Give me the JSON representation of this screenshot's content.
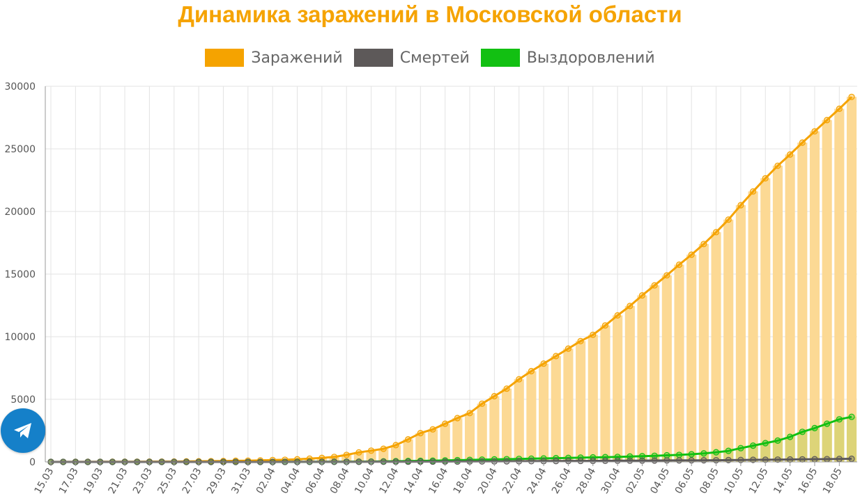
{
  "title": "Динамика заражений в Московской области",
  "colors": {
    "title": "#f5a300",
    "infected": "#f5a300",
    "infected_bar": "#fcd994",
    "deaths": "#5d5959",
    "recovered": "#12c012",
    "recovered_bar": "#d9d374",
    "grid": "#e3e3e3",
    "axis": "#999999",
    "telegram": "#1580c9"
  },
  "legend": [
    {
      "label": "Заражений",
      "color": "#f5a300"
    },
    {
      "label": "Смертей",
      "color": "#5d5959"
    },
    {
      "label": "Выздоровлений",
      "color": "#12c012"
    }
  ],
  "telegram": {
    "icon": "telegram-plane-icon"
  },
  "chart_data": {
    "type": "bar",
    "title": "Динамика заражений в Московской области",
    "xlabel": "",
    "ylabel": "",
    "ylim": [
      0,
      30000
    ],
    "yticks": [
      0,
      5000,
      10000,
      15000,
      20000,
      25000,
      30000
    ],
    "grid": true,
    "legend_position": "top",
    "categories": [
      "15.03",
      "16.03",
      "17.03",
      "18.03",
      "19.03",
      "20.03",
      "21.03",
      "22.03",
      "23.03",
      "24.03",
      "25.03",
      "26.03",
      "27.03",
      "28.03",
      "29.03",
      "30.03",
      "31.03",
      "01.04",
      "02.04",
      "03.04",
      "04.04",
      "05.04",
      "06.04",
      "07.04",
      "08.04",
      "09.04",
      "10.04",
      "11.04",
      "12.04",
      "13.04",
      "14.04",
      "15.04",
      "16.04",
      "17.04",
      "18.04",
      "19.04",
      "20.04",
      "21.04",
      "22.04",
      "23.04",
      "24.04",
      "25.04",
      "26.04",
      "27.04",
      "28.04",
      "29.04",
      "30.04",
      "01.05",
      "02.05",
      "03.05",
      "04.05",
      "05.05",
      "06.05",
      "07.05",
      "08.05",
      "09.05",
      "10.05",
      "11.05",
      "12.05",
      "13.05",
      "14.05",
      "15.05",
      "16.05",
      "17.05",
      "18.05",
      "19.05"
    ],
    "xtick_labels": [
      "15.03",
      "17.03",
      "19.03",
      "21.03",
      "23.03",
      "25.03",
      "27.03",
      "29.03",
      "31.03",
      "02.04",
      "04.04",
      "06.04",
      "08.04",
      "10.04",
      "12.04",
      "14.04",
      "16.04",
      "18.04",
      "20.04",
      "22.04",
      "24.04",
      "26.04",
      "28.04",
      "30.04",
      "02.05",
      "04.05",
      "06.05",
      "08.05",
      "10.05",
      "12.05",
      "14.05",
      "16.05",
      "18.05"
    ],
    "series": [
      {
        "name": "Заражений",
        "display": "bar+line",
        "values": [
          2,
          4,
          6,
          8,
          10,
          12,
          15,
          18,
          20,
          25,
          30,
          40,
          50,
          60,
          70,
          90,
          100,
          120,
          150,
          170,
          210,
          260,
          320,
          400,
          560,
          760,
          900,
          1050,
          1340,
          1800,
          2300,
          2600,
          3050,
          3500,
          3900,
          4650,
          5250,
          5850,
          6600,
          7250,
          7850,
          8450,
          9050,
          9650,
          10150,
          10900,
          11700,
          12450,
          13300,
          14100,
          14900,
          15750,
          16550,
          17400,
          18350,
          19350,
          20500,
          21600,
          22650,
          23650,
          24550,
          25500,
          26400,
          27300,
          28200,
          29150
        ]
      },
      {
        "name": "Смертей",
        "display": "line",
        "values": [
          0,
          0,
          0,
          0,
          0,
          0,
          0,
          0,
          0,
          0,
          0,
          0,
          1,
          1,
          1,
          1,
          2,
          2,
          2,
          3,
          3,
          4,
          5,
          6,
          7,
          8,
          10,
          12,
          14,
          17,
          20,
          23,
          27,
          31,
          35,
          40,
          45,
          50,
          55,
          60,
          65,
          70,
          75,
          80,
          85,
          90,
          95,
          100,
          105,
          110,
          115,
          120,
          125,
          130,
          135,
          145,
          155,
          165,
          175,
          185,
          195,
          205,
          215,
          225,
          235,
          250
        ]
      },
      {
        "name": "Выздоровлений",
        "display": "bar+line",
        "values": [
          0,
          0,
          0,
          0,
          0,
          0,
          0,
          0,
          0,
          0,
          0,
          0,
          0,
          0,
          0,
          0,
          1,
          1,
          2,
          3,
          5,
          7,
          10,
          14,
          18,
          23,
          30,
          40,
          55,
          70,
          85,
          100,
          120,
          140,
          160,
          180,
          200,
          220,
          240,
          260,
          280,
          300,
          320,
          340,
          360,
          380,
          400,
          430,
          460,
          490,
          530,
          560,
          610,
          680,
          770,
          880,
          1100,
          1300,
          1500,
          1700,
          2000,
          2400,
          2700,
          3050,
          3400,
          3600
        ]
      }
    ]
  }
}
